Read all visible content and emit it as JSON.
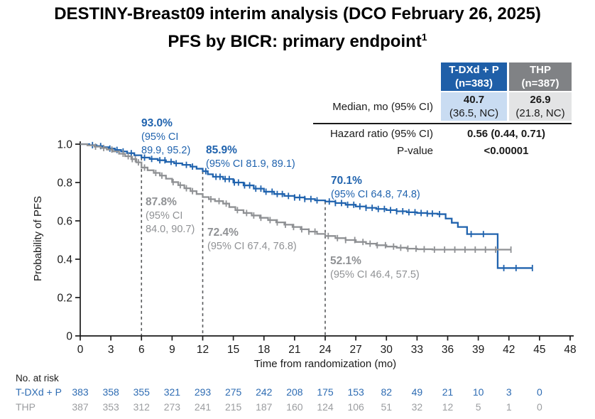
{
  "title": {
    "line1": "DESTINY-Breast09 interim analysis (DCO February 26, 2025)",
    "line2": "PFS by BICR: primary endpoint",
    "superscript": "1"
  },
  "summary_table": {
    "arms": [
      {
        "name": "T-DXd + P",
        "n_label": "(n=383)",
        "median": "40.7",
        "median_ci": "(36.5, NC)"
      },
      {
        "name": "THP",
        "n_label": "(n=387)",
        "median": "26.9",
        "median_ci": "(21.8, NC)"
      }
    ],
    "median_row_label": "Median, mo (95% CI)",
    "hazard_row_label": "Hazard ratio (95% CI)",
    "hazard_value": "0.56 (0.44, 0.71)",
    "pvalue_row_label": "P-value",
    "pvalue": "<0.00001"
  },
  "colors": {
    "brand_blue": "#1f5fa8",
    "curve_blue": "#2063ae",
    "light_blue": "#c9dcf2",
    "header_gray": "#808285",
    "light_gray": "#e3e4e5",
    "curve_gray": "#8f9194",
    "risk_blue": "#2e6cb3",
    "risk_gray": "#9b9da0",
    "dashed_gray": "#58595b",
    "axis_black": "#1a1a1a"
  },
  "chart_data": {
    "type": "line",
    "subtype": "kaplan-meier",
    "title": "",
    "xlabel": "Time from randomization (mo)",
    "ylabel": "Probability of PFS",
    "xlim": [
      0,
      48
    ],
    "ylim": [
      0,
      1.0
    ],
    "xticks": [
      0,
      3,
      6,
      9,
      12,
      15,
      18,
      21,
      24,
      27,
      30,
      33,
      36,
      39,
      42,
      45,
      48
    ],
    "yticks": [
      "0",
      "0.2",
      "0.4",
      "0.6",
      "0.8",
      "1.0"
    ],
    "grid": false,
    "landmark_times": [
      6,
      12,
      24
    ],
    "series": [
      {
        "name": "T-DXd + P",
        "color": "#2063ae",
        "steps": [
          [
            0,
            1.0
          ],
          [
            0.9,
            0.995
          ],
          [
            1.6,
            0.99
          ],
          [
            2.2,
            0.984
          ],
          [
            2.8,
            0.977
          ],
          [
            3.4,
            0.97
          ],
          [
            4.0,
            0.962
          ],
          [
            4.6,
            0.953
          ],
          [
            5.3,
            0.942
          ],
          [
            6.0,
            0.93
          ],
          [
            6.8,
            0.923
          ],
          [
            7.6,
            0.916
          ],
          [
            8.4,
            0.908
          ],
          [
            9.2,
            0.9
          ],
          [
            10.0,
            0.892
          ],
          [
            10.8,
            0.883
          ],
          [
            11.4,
            0.872
          ],
          [
            12.0,
            0.859
          ],
          [
            12.5,
            0.843
          ],
          [
            13.0,
            0.83
          ],
          [
            14.0,
            0.818
          ],
          [
            15.0,
            0.8
          ],
          [
            16.0,
            0.785
          ],
          [
            17.0,
            0.768
          ],
          [
            18.0,
            0.752
          ],
          [
            19.0,
            0.74
          ],
          [
            20.0,
            0.73
          ],
          [
            21.0,
            0.722
          ],
          [
            22.0,
            0.714
          ],
          [
            23.0,
            0.707
          ],
          [
            24.0,
            0.701
          ],
          [
            25.0,
            0.693
          ],
          [
            26.0,
            0.684
          ],
          [
            27.0,
            0.675
          ],
          [
            28.0,
            0.668
          ],
          [
            29.0,
            0.662
          ],
          [
            30.0,
            0.656
          ],
          [
            31.0,
            0.65
          ],
          [
            32.0,
            0.645
          ],
          [
            33.0,
            0.641
          ],
          [
            34.0,
            0.638
          ],
          [
            35.0,
            0.635
          ],
          [
            35.8,
            0.612
          ],
          [
            36.4,
            0.59
          ],
          [
            37.0,
            0.568
          ],
          [
            37.9,
            0.531
          ],
          [
            40.9,
            0.354
          ],
          [
            44.3,
            0.354
          ]
        ],
        "censor_times": [
          1.2,
          2.0,
          2.9,
          3.6,
          4.2,
          5.0,
          6.3,
          7.0,
          7.8,
          8.3,
          8.9,
          9.4,
          10.4,
          11.0,
          12.3,
          13.3,
          13.7,
          14.2,
          14.6,
          15.1,
          15.5,
          16.1,
          16.6,
          17.2,
          17.7,
          18.2,
          18.8,
          19.3,
          19.8,
          20.4,
          21.0,
          21.5,
          22.0,
          22.6,
          23.2,
          24.4,
          25.0,
          25.6,
          26.2,
          26.8,
          27.4,
          28.0,
          28.6,
          29.2,
          29.8,
          30.4,
          31.0,
          31.6,
          32.2,
          32.8,
          33.4,
          34.0,
          34.5,
          35.2,
          38.3,
          39.5,
          41.5,
          42.7,
          44.3
        ],
        "annotations": [
          {
            "time": 6,
            "value": "93.0%",
            "ci_lines": [
              "(95% CI",
              "89.9, 95.2)"
            ]
          },
          {
            "time": 12,
            "value": "85.9%",
            "ci_lines": [
              "(95% CI 81.9, 89.1)"
            ]
          },
          {
            "time": 24,
            "value": "70.1%",
            "ci_lines": [
              "(95% CI 64.8, 74.8)"
            ]
          }
        ]
      },
      {
        "name": "THP",
        "color": "#8f9194",
        "steps": [
          [
            0,
            1.0
          ],
          [
            0.7,
            0.994
          ],
          [
            1.4,
            0.987
          ],
          [
            2.0,
            0.98
          ],
          [
            2.6,
            0.972
          ],
          [
            3.2,
            0.962
          ],
          [
            3.8,
            0.95
          ],
          [
            4.4,
            0.937
          ],
          [
            5.0,
            0.922
          ],
          [
            5.5,
            0.905
          ],
          [
            6.0,
            0.878
          ],
          [
            6.6,
            0.864
          ],
          [
            7.2,
            0.85
          ],
          [
            7.8,
            0.836
          ],
          [
            8.4,
            0.82
          ],
          [
            9.0,
            0.802
          ],
          [
            9.6,
            0.786
          ],
          [
            10.2,
            0.77
          ],
          [
            10.8,
            0.755
          ],
          [
            11.4,
            0.74
          ],
          [
            12.0,
            0.724
          ],
          [
            12.6,
            0.713
          ],
          [
            13.2,
            0.703
          ],
          [
            14.0,
            0.69
          ],
          [
            14.6,
            0.672
          ],
          [
            15.2,
            0.656
          ],
          [
            16.0,
            0.641
          ],
          [
            16.8,
            0.628
          ],
          [
            17.6,
            0.616
          ],
          [
            18.4,
            0.604
          ],
          [
            19.2,
            0.592
          ],
          [
            20.0,
            0.58
          ],
          [
            20.8,
            0.568
          ],
          [
            21.6,
            0.556
          ],
          [
            22.4,
            0.544
          ],
          [
            23.2,
            0.532
          ],
          [
            24.0,
            0.521
          ],
          [
            25.0,
            0.51
          ],
          [
            26.0,
            0.5
          ],
          [
            27.0,
            0.49
          ],
          [
            28.0,
            0.481
          ],
          [
            29.0,
            0.473
          ],
          [
            30.0,
            0.466
          ],
          [
            31.0,
            0.46
          ],
          [
            32.0,
            0.455
          ],
          [
            33.0,
            0.452
          ],
          [
            34.5,
            0.45
          ],
          [
            42.2,
            0.45
          ]
        ],
        "censor_times": [
          1.5,
          2.3,
          3.1,
          4.2,
          4.7,
          5.1,
          5.4,
          5.7,
          6.3,
          7.4,
          8.0,
          9.1,
          9.8,
          10.4,
          11.0,
          12.8,
          13.6,
          14.3,
          15.4,
          16.3,
          17.0,
          17.7,
          18.6,
          19.3,
          20.1,
          20.9,
          21.7,
          22.4,
          23.0,
          24.3,
          25.2,
          26.0,
          26.9,
          27.7,
          28.4,
          29.1,
          29.9,
          30.7,
          31.4,
          32.1,
          32.9,
          33.7,
          34.7,
          35.7,
          36.7,
          37.7,
          38.7,
          39.7,
          40.7,
          42.2
        ],
        "annotations": [
          {
            "time": 6,
            "value": "87.8%",
            "ci_lines": [
              "(95% CI",
              "84.0, 90.7)"
            ]
          },
          {
            "time": 12,
            "value": "72.4%",
            "ci_lines": [
              "(95% CI 67.4, 76.8)"
            ]
          },
          {
            "time": 24,
            "value": "52.1%",
            "ci_lines": [
              "(95% CI 46.4, 57.5)"
            ]
          }
        ]
      }
    ],
    "risk_table": {
      "label": "No. at risk",
      "times": [
        0,
        3,
        6,
        9,
        12,
        15,
        18,
        21,
        24,
        27,
        30,
        33,
        36,
        39,
        42,
        45
      ],
      "rows": [
        {
          "name": "T-DXd + P",
          "color": "#2e6cb3",
          "values": [
            383,
            358,
            355,
            321,
            293,
            275,
            242,
            208,
            175,
            153,
            82,
            49,
            21,
            10,
            3,
            0
          ]
        },
        {
          "name": "THP",
          "color": "#9b9da0",
          "values": [
            387,
            353,
            312,
            273,
            241,
            215,
            187,
            160,
            124,
            106,
            51,
            32,
            12,
            5,
            1,
            0
          ]
        }
      ]
    }
  }
}
